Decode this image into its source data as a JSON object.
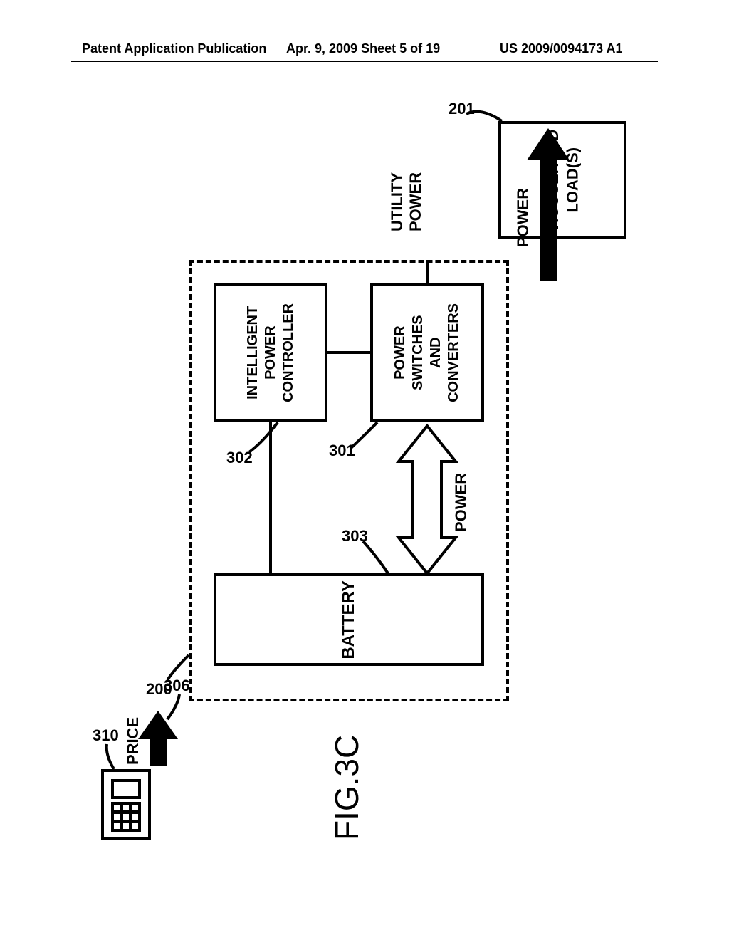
{
  "header": {
    "left": "Patent Application Publication",
    "mid": "Apr. 9, 2009  Sheet 5 of 19",
    "right": "US 2009/0094173 A1"
  },
  "labels": {
    "utility_power": "UTILITY POWER",
    "power1": "POWER",
    "power2": "POWER",
    "price": "PRICE"
  },
  "blocks": {
    "household": "HOUSEHOLD\nLOAD(S)",
    "power_switches": "POWER\nSWITCHES\nAND\nCONVERTERS",
    "ipc": "INTELLIGENT\nPOWER\nCONTROLLER",
    "battery": "BATTERY"
  },
  "refs": {
    "r201": "201",
    "r301": "301",
    "r302": "302",
    "r303": "303",
    "r306": "306",
    "r310": "310",
    "r200": "200"
  },
  "figure": "FIG.3C",
  "style": {
    "font_size_block": 22,
    "font_size_label": 22,
    "stroke_width": 4,
    "dash": "12 10"
  }
}
